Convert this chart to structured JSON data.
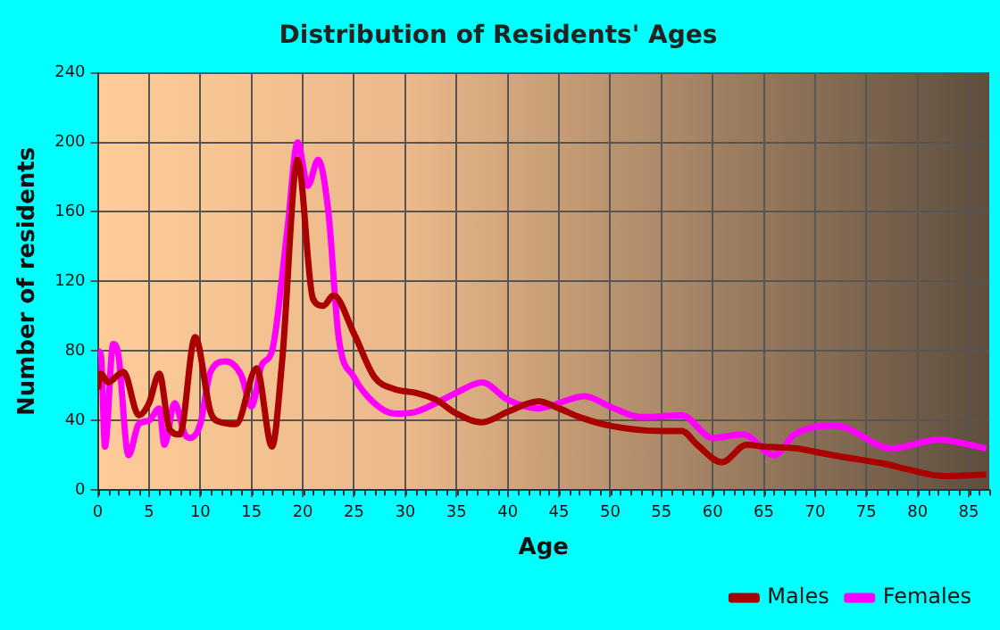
{
  "chart_data": {
    "type": "line",
    "title": "Distribution of Residents' Ages",
    "xlabel": "Age",
    "ylabel": "Number of residents",
    "xlim": [
      0,
      87
    ],
    "xticks": [
      0,
      5,
      10,
      15,
      20,
      25,
      30,
      35,
      40,
      45,
      50,
      55,
      60,
      65,
      70,
      75,
      80,
      85
    ],
    "ylim": [
      0,
      240
    ],
    "yticks": [
      0,
      40,
      80,
      120,
      160,
      200,
      240
    ],
    "grid": true,
    "legend": "bottom right",
    "marker": "none",
    "line_style": "solid",
    "series": [
      {
        "name": "Males",
        "color": "#aa0000",
        "x": [
          0,
          0.3,
          1,
          2.5,
          4,
          5,
          6,
          7,
          8,
          9.5,
          11,
          12,
          13.5,
          15.5,
          17,
          18,
          19.5,
          21,
          22,
          23,
          25,
          27,
          29,
          31,
          33,
          35,
          37.5,
          40,
          43,
          45,
          47,
          50,
          55,
          57,
          58.5,
          60.9,
          63.3,
          65,
          68.2,
          70,
          72.8,
          76.9,
          79,
          82.6,
          86.7
        ],
        "values": [
          58,
          67,
          62,
          68,
          43,
          50,
          67,
          35,
          32,
          88,
          45,
          39,
          38,
          70,
          25,
          75,
          190,
          110,
          106,
          112,
          90,
          65,
          58,
          56,
          52,
          44,
          39,
          45,
          51,
          47,
          42,
          37,
          34,
          34,
          26,
          16,
          26,
          25,
          24,
          22,
          19,
          15,
          12,
          8,
          9
        ]
      },
      {
        "name": "Females",
        "color": "#ff00ff",
        "x": [
          0,
          0.3,
          0.7,
          1.5,
          2,
          3,
          4,
          5,
          6,
          6.5,
          7.5,
          8.5,
          9,
          10,
          11,
          12.5,
          14,
          15,
          16,
          17,
          18.5,
          19.5,
          20.5,
          21.5,
          22.5,
          23.5,
          25,
          27,
          29,
          31,
          33,
          35,
          37.5,
          40,
          43,
          47.5,
          50,
          53,
          57,
          60,
          63,
          66,
          68,
          72,
          77.5,
          82,
          86.7
        ],
        "values": [
          80,
          78,
          25,
          84,
          78,
          20,
          38,
          40,
          47,
          26,
          50,
          32,
          30,
          38,
          68,
          74,
          66,
          48,
          72,
          80,
          150,
          200,
          175,
          190,
          160,
          88,
          65,
          50,
          44,
          45,
          50,
          56,
          62,
          52,
          47,
          54,
          48,
          42,
          43,
          30,
          32,
          20,
          32,
          37,
          24,
          29,
          24
        ]
      }
    ]
  }
}
